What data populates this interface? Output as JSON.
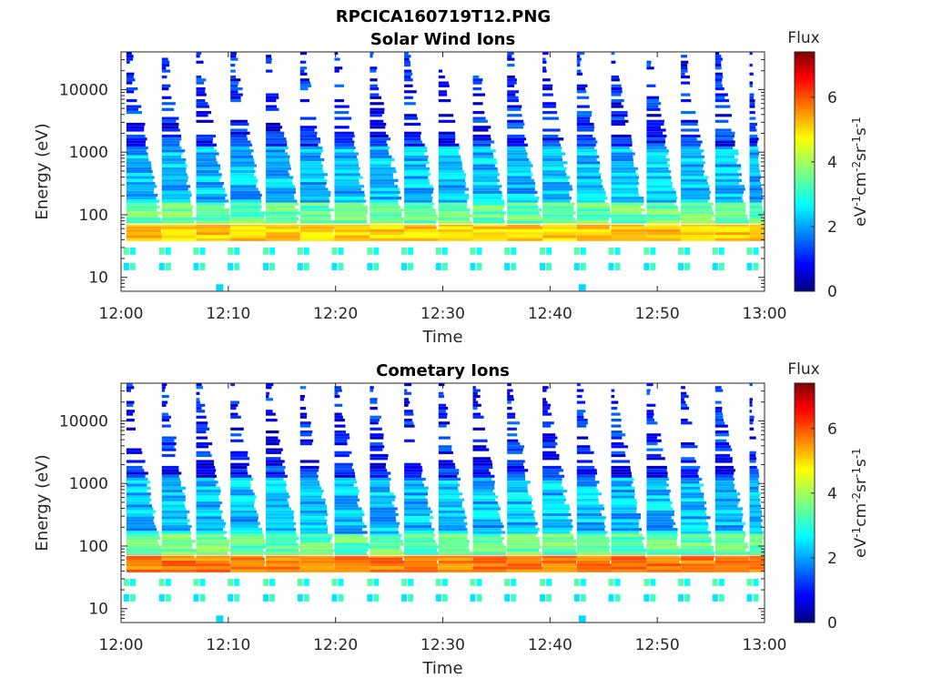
{
  "figure": {
    "title": "RPCICA160719T12.PNG"
  },
  "colormap": [
    "#00007f",
    "#0000ff",
    "#007fff",
    "#00ffff",
    "#7fff7f",
    "#ffff00",
    "#ff7f00",
    "#ff0000",
    "#7f0000"
  ],
  "chart_data": [
    {
      "type": "heatmap",
      "title": "Solar Wind Ions",
      "xlabel": "Time",
      "ylabel": "Energy (eV)",
      "x_ticks": [
        "12:00",
        "12:10",
        "12:20",
        "12:30",
        "12:40",
        "12:50",
        "13:00"
      ],
      "xlim": [
        "12:00",
        "13:00"
      ],
      "y_scale": "log",
      "y_ticks": [
        10,
        100,
        1000,
        10000
      ],
      "y_tick_labels": [
        "10",
        "100",
        "1000",
        "10000"
      ],
      "ylim": [
        6,
        40000
      ],
      "colorbar": {
        "label": "Flux",
        "units_base": [
          "eV",
          "cm",
          "sr",
          "s"
        ],
        "units_exp": [
          "-1",
          "-2",
          "-1",
          "-1"
        ],
        "range": [
          0,
          7.4
        ],
        "ticks": [
          0,
          2,
          4,
          6
        ],
        "tick_labels": [
          "0",
          "2",
          "4",
          "6"
        ]
      },
      "peak_band_ev": [
        38,
        70
      ],
      "low_energy_bins_ev": [
        [
          23,
          30
        ],
        [
          13,
          17
        ]
      ],
      "sweep_minutes": [
        0.5,
        3.8,
        7.0,
        10.2,
        13.5,
        16.7,
        19.9,
        23.2,
        26.4,
        29.6,
        32.8,
        36.0,
        39.3,
        42.5,
        45.7,
        49.0,
        52.2,
        55.4,
        58.6
      ],
      "isolated_points": [
        {
          "minute": 9.2,
          "energy_ev": 6.8,
          "flux": 2.5
        },
        {
          "minute": 43.0,
          "energy_ev": 6.8,
          "flux": 2.5
        }
      ]
    },
    {
      "type": "heatmap",
      "title": "Cometary Ions",
      "xlabel": "Time",
      "ylabel": "Energy (eV)",
      "x_ticks": [
        "12:00",
        "12:10",
        "12:20",
        "12:30",
        "12:40",
        "12:50",
        "13:00"
      ],
      "xlim": [
        "12:00",
        "13:00"
      ],
      "y_scale": "log",
      "y_ticks": [
        10,
        100,
        1000,
        10000
      ],
      "y_tick_labels": [
        "10",
        "100",
        "1000",
        "10000"
      ],
      "ylim": [
        6,
        40000
      ],
      "colorbar": {
        "label": "Flux",
        "units_base": [
          "eV",
          "cm",
          "sr",
          "s"
        ],
        "units_exp": [
          "-1",
          "-2",
          "-1",
          "-1"
        ],
        "range": [
          0,
          7.4
        ],
        "ticks": [
          0,
          2,
          4,
          6
        ],
        "tick_labels": [
          "0",
          "2",
          "4",
          "6"
        ]
      },
      "peak_band_ev": [
        38,
        70
      ],
      "low_energy_bins_ev": [
        [
          23,
          30
        ],
        [
          13,
          17
        ]
      ],
      "sweep_minutes": [
        0.5,
        3.8,
        7.0,
        10.2,
        13.5,
        16.7,
        19.9,
        23.2,
        26.4,
        29.6,
        32.8,
        36.0,
        39.3,
        42.5,
        45.7,
        49.0,
        52.2,
        55.4,
        58.6
      ],
      "isolated_points": [
        {
          "minute": 9.2,
          "energy_ev": 6.8,
          "flux": 2.5
        },
        {
          "minute": 43.0,
          "energy_ev": 6.8,
          "flux": 2.5
        }
      ]
    }
  ]
}
